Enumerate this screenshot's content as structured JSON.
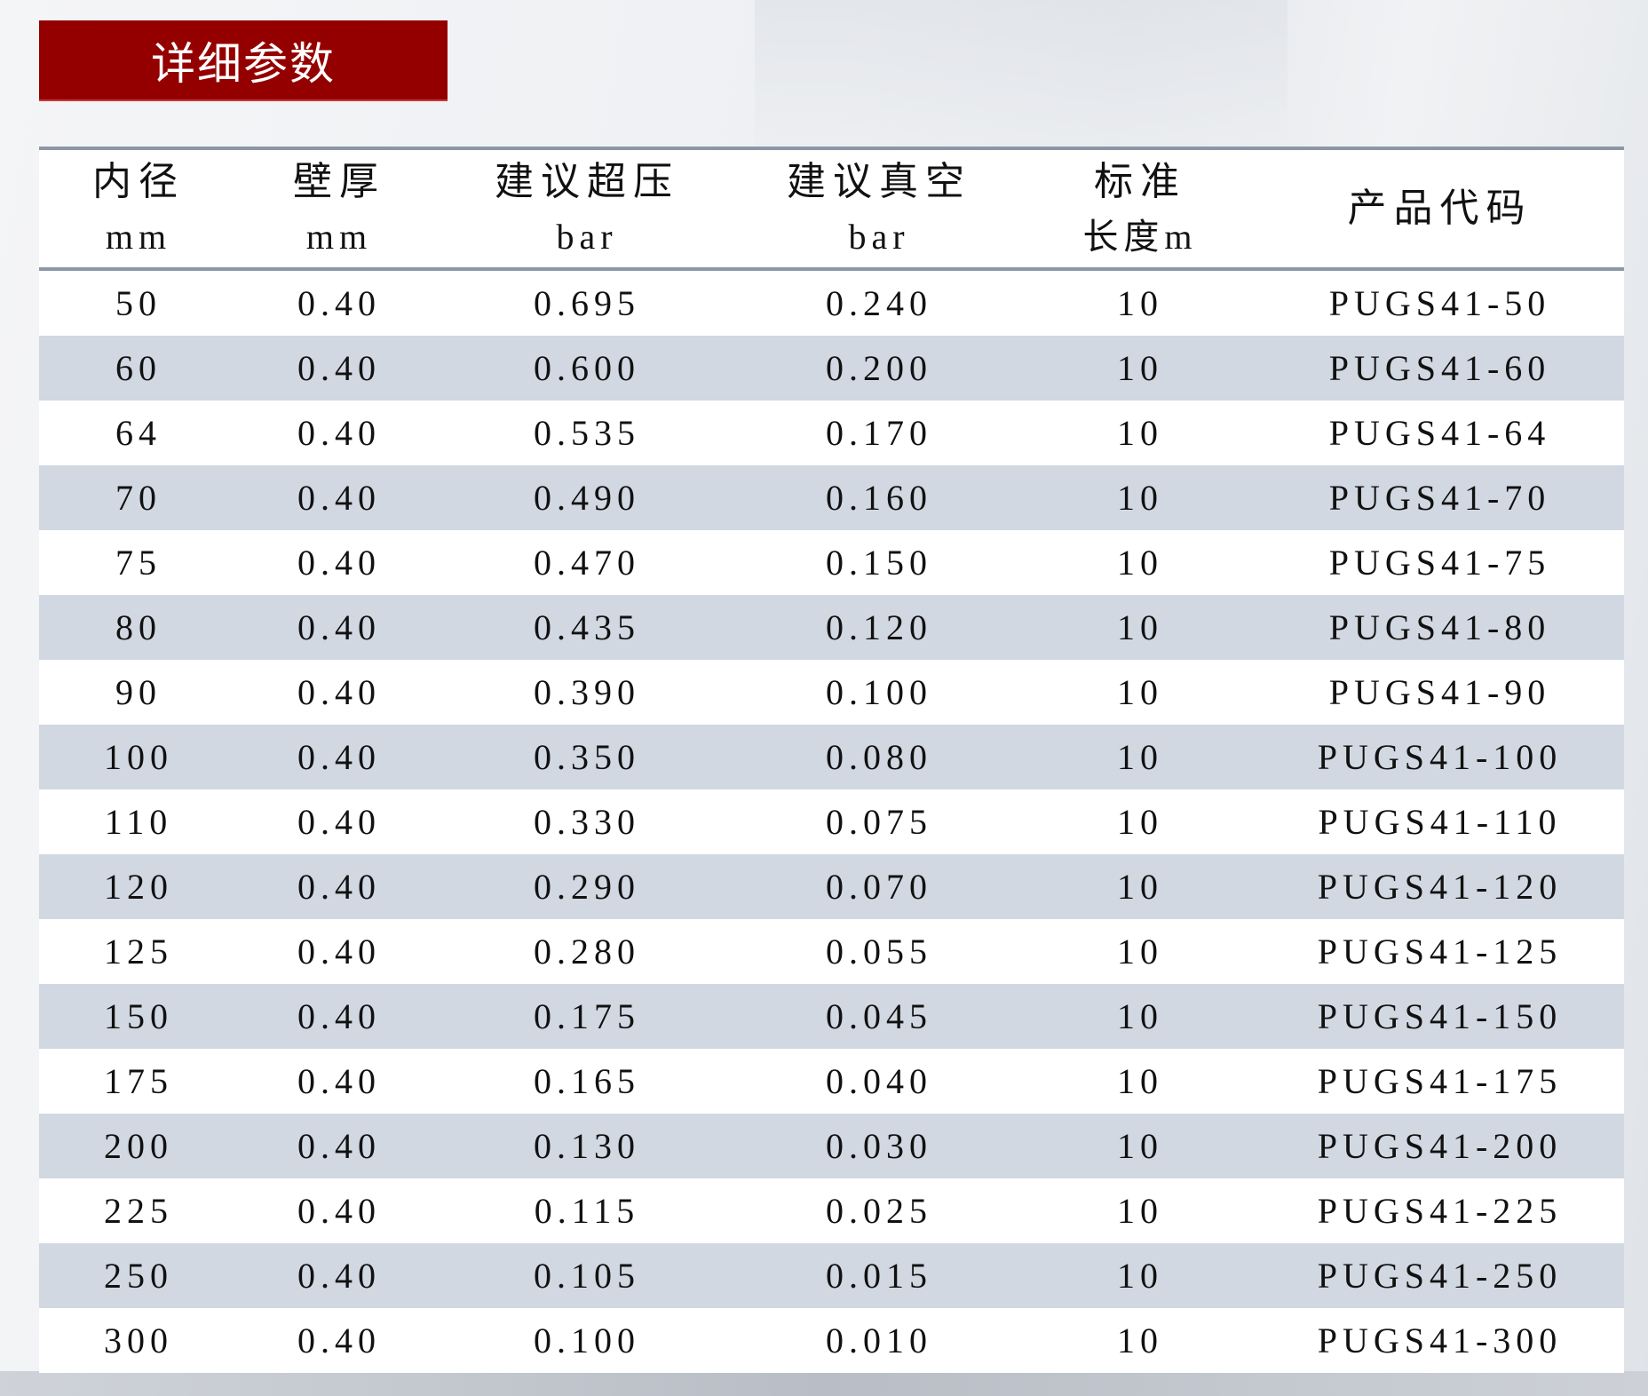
{
  "title": "详细参数",
  "headers": [
    {
      "line1": "内径",
      "line2": "mm"
    },
    {
      "line1": "壁厚",
      "line2": "mm"
    },
    {
      "line1": "建议超压",
      "line2": "bar"
    },
    {
      "line1": "建议真空",
      "line2": "bar"
    },
    {
      "line1": "标准",
      "line2": "长度m"
    },
    {
      "line1": "产品代码",
      "line2": ""
    }
  ],
  "rows": [
    [
      "50",
      "0.40",
      "0.695",
      "0.240",
      "10",
      "PUGS41-50"
    ],
    [
      "60",
      "0.40",
      "0.600",
      "0.200",
      "10",
      "PUGS41-60"
    ],
    [
      "64",
      "0.40",
      "0.535",
      "0.170",
      "10",
      "PUGS41-64"
    ],
    [
      "70",
      "0.40",
      "0.490",
      "0.160",
      "10",
      "PUGS41-70"
    ],
    [
      "75",
      "0.40",
      "0.470",
      "0.150",
      "10",
      "PUGS41-75"
    ],
    [
      "80",
      "0.40",
      "0.435",
      "0.120",
      "10",
      "PUGS41-80"
    ],
    [
      "90",
      "0.40",
      "0.390",
      "0.100",
      "10",
      "PUGS41-90"
    ],
    [
      "100",
      "0.40",
      "0.350",
      "0.080",
      "10",
      "PUGS41-100"
    ],
    [
      "110",
      "0.40",
      "0.330",
      "0.075",
      "10",
      "PUGS41-110"
    ],
    [
      "120",
      "0.40",
      "0.290",
      "0.070",
      "10",
      "PUGS41-120"
    ],
    [
      "125",
      "0.40",
      "0.280",
      "0.055",
      "10",
      "PUGS41-125"
    ],
    [
      "150",
      "0.40",
      "0.175",
      "0.045",
      "10",
      "PUGS41-150"
    ],
    [
      "175",
      "0.40",
      "0.165",
      "0.040",
      "10",
      "PUGS41-175"
    ],
    [
      "200",
      "0.40",
      "0.130",
      "0.030",
      "10",
      "PUGS41-200"
    ],
    [
      "225",
      "0.40",
      "0.115",
      "0.025",
      "10",
      "PUGS41-225"
    ],
    [
      "250",
      "0.40",
      "0.105",
      "0.015",
      "10",
      "PUGS41-250"
    ],
    [
      "300",
      "0.40",
      "0.100",
      "0.010",
      "10",
      "PUGS41-300"
    ]
  ],
  "colors": {
    "title_bg": "#940000",
    "stripe": "#d1d8e2",
    "rule": "#8c96a6"
  }
}
